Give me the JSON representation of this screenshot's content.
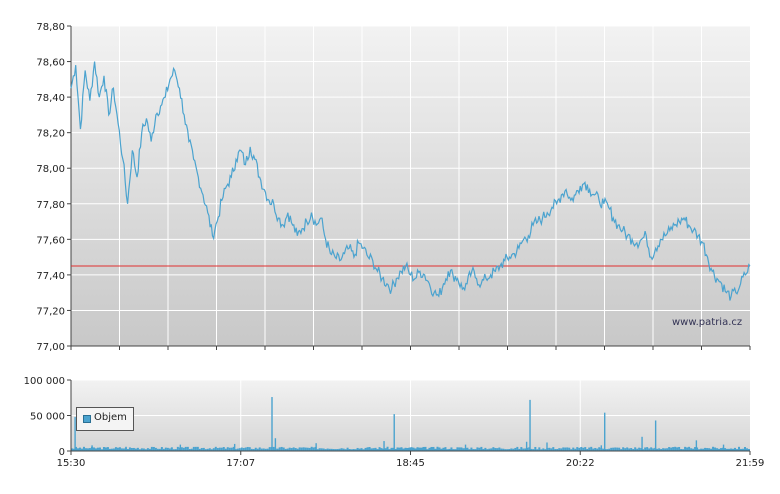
{
  "watermark": "www.patria.cz",
  "colors": {
    "price_line": "#4ba3cf",
    "reference_line": "#e03030",
    "volume_bar": "#4ba3cf",
    "grid": "#ffffff",
    "axis": "#444444"
  },
  "chart_data": [
    {
      "type": "line",
      "title": "",
      "xlabel": "",
      "ylabel": "",
      "ylim": [
        77.0,
        78.8
      ],
      "y_ticks": [
        "78,80",
        "78,60",
        "78,40",
        "78,20",
        "78,00",
        "77,80",
        "77,60",
        "77,40",
        "77,20",
        "77,00"
      ],
      "y_tick_values": [
        78.8,
        78.6,
        78.4,
        78.2,
        78.0,
        77.8,
        77.6,
        77.4,
        77.2,
        77.0
      ],
      "x_range": [
        "15:30",
        "21:59"
      ],
      "grid": true,
      "reference_line": 77.45,
      "series": [
        {
          "values": [
            78.45,
            78.58,
            78.22,
            78.55,
            78.38,
            78.6,
            78.4,
            78.52,
            78.3,
            78.45,
            78.25,
            78.05,
            77.8,
            78.1,
            77.95,
            78.2,
            78.28,
            78.15,
            78.3,
            78.35,
            78.4,
            78.5,
            78.55,
            78.45,
            78.3,
            78.15,
            78.05,
            77.95,
            77.85,
            77.75,
            77.62,
            77.7,
            77.82,
            77.9,
            77.95,
            78.05,
            78.1,
            78.02,
            78.12,
            78.05,
            77.95,
            77.88,
            77.82,
            77.8,
            77.72,
            77.68,
            77.75,
            77.68,
            77.62,
            77.66,
            77.7,
            77.75,
            77.68,
            77.72,
            77.6,
            77.52,
            77.5,
            77.48,
            77.52,
            77.55,
            77.5,
            77.58,
            77.55,
            77.5,
            77.48,
            77.42,
            77.38,
            77.35,
            77.32,
            77.38,
            77.42,
            77.45,
            77.4,
            77.38,
            77.42,
            77.4,
            77.35,
            77.3,
            77.28,
            77.35,
            77.42,
            77.4,
            77.38,
            77.32,
            77.35,
            77.42,
            77.38,
            77.35,
            77.38,
            77.4,
            77.42,
            77.45,
            77.48,
            77.5,
            77.52,
            77.55,
            77.6,
            77.62,
            77.68,
            77.7,
            77.72,
            77.75,
            77.78,
            77.8,
            77.85,
            77.88,
            77.82,
            77.85,
            77.9,
            77.92,
            77.88,
            77.85,
            77.82,
            77.8,
            77.78,
            77.72,
            77.68,
            77.65,
            77.62,
            77.6,
            77.58,
            77.6,
            77.62,
            77.5,
            77.55,
            77.6,
            77.62,
            77.65,
            77.68,
            77.7,
            77.72,
            77.68,
            77.65,
            77.62,
            77.58,
            77.5,
            77.42,
            77.38,
            77.35,
            77.3,
            77.28,
            77.3,
            77.35,
            77.4,
            77.45
          ]
        }
      ]
    },
    {
      "type": "bar",
      "title": "",
      "xlabel": "",
      "ylabel": "",
      "ylim": [
        0,
        100000
      ],
      "y_ticks": [
        "100 000",
        "50 000",
        "0"
      ],
      "y_tick_values": [
        100000,
        50000,
        0
      ],
      "x_ticks": [
        "15:30",
        "17:07",
        "18:45",
        "20:22",
        "21:59"
      ],
      "grid": true,
      "legend": {
        "placement": "bottom-left",
        "entries": [
          "Objem"
        ]
      },
      "series": [
        {
          "name": "Objem",
          "baseline": 4000,
          "spikes": [
            {
              "x": 0.005,
              "value": 48000
            },
            {
              "x": 0.03,
              "value": 8000
            },
            {
              "x": 0.08,
              "value": 6000
            },
            {
              "x": 0.16,
              "value": 9000
            },
            {
              "x": 0.24,
              "value": 10000
            },
            {
              "x": 0.3,
              "value": 18000
            },
            {
              "x": 0.295,
              "value": 76000
            },
            {
              "x": 0.36,
              "value": 11000
            },
            {
              "x": 0.46,
              "value": 14000
            },
            {
              "x": 0.475,
              "value": 52000
            },
            {
              "x": 0.58,
              "value": 9000
            },
            {
              "x": 0.67,
              "value": 13000
            },
            {
              "x": 0.675,
              "value": 72000
            },
            {
              "x": 0.7,
              "value": 12000
            },
            {
              "x": 0.78,
              "value": 8000
            },
            {
              "x": 0.785,
              "value": 54000
            },
            {
              "x": 0.84,
              "value": 20000
            },
            {
              "x": 0.86,
              "value": 43000
            },
            {
              "x": 0.92,
              "value": 15000
            },
            {
              "x": 0.96,
              "value": 9000
            }
          ]
        }
      ]
    }
  ]
}
